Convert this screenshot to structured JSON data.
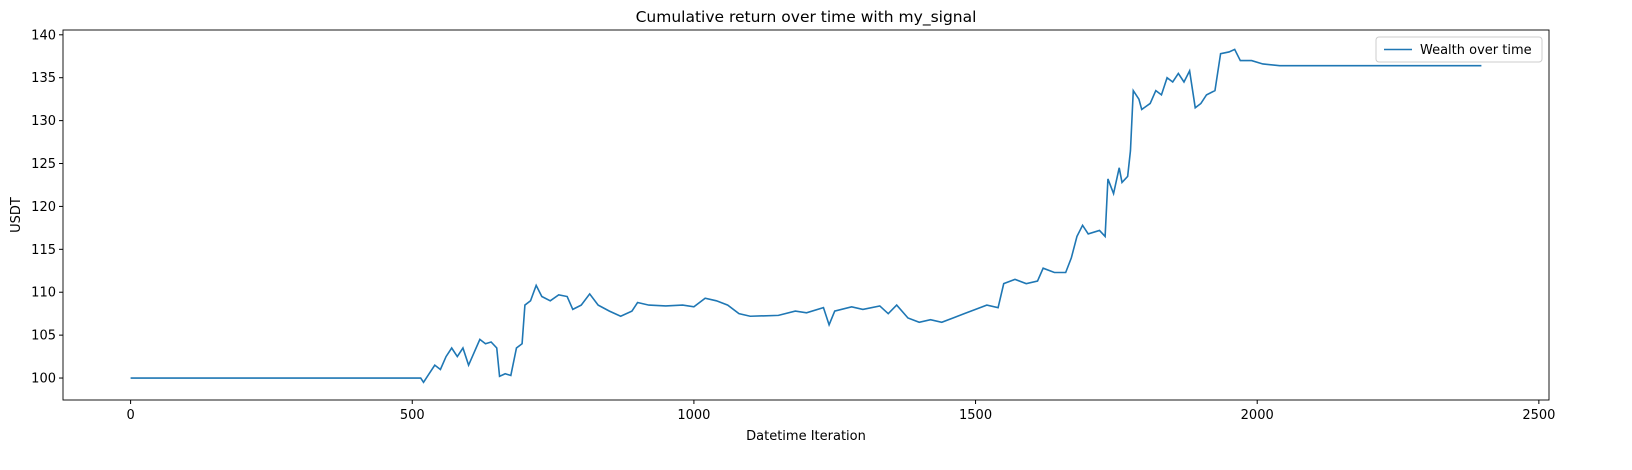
{
  "chart_data": {
    "type": "line",
    "title": "Cumulative return over time with my_signal",
    "xlabel": "Datetime Iteration",
    "ylabel": "USDT",
    "x": [
      0,
      515,
      520,
      530,
      540,
      550,
      560,
      570,
      580,
      590,
      600,
      610,
      620,
      630,
      640,
      650,
      655,
      665,
      675,
      685,
      695,
      700,
      710,
      720,
      730,
      745,
      760,
      775,
      785,
      800,
      815,
      830,
      850,
      870,
      890,
      900,
      920,
      950,
      980,
      1000,
      1020,
      1040,
      1060,
      1080,
      1100,
      1150,
      1180,
      1200,
      1230,
      1240,
      1250,
      1280,
      1300,
      1330,
      1345,
      1360,
      1380,
      1400,
      1420,
      1440,
      1460,
      1480,
      1500,
      1520,
      1540,
      1550,
      1570,
      1590,
      1610,
      1620,
      1640,
      1660,
      1670,
      1680,
      1690,
      1700,
      1720,
      1730,
      1735,
      1745,
      1755,
      1760,
      1770,
      1775,
      1780,
      1790,
      1795,
      1810,
      1820,
      1830,
      1840,
      1850,
      1860,
      1870,
      1880,
      1890,
      1900,
      1910,
      1925,
      1935,
      1950,
      1960,
      1970,
      1990,
      2010,
      2040,
      2398
    ],
    "series": [
      {
        "name": "Wealth over time",
        "color": "#1f77b4",
        "values": [
          100,
          100,
          99.5,
          100.5,
          101.5,
          101,
          102.5,
          103.5,
          102.5,
          103.5,
          101.5,
          103,
          104.5,
          104,
          104.2,
          103.5,
          100.2,
          100.5,
          100.3,
          103.5,
          104,
          108.5,
          109,
          110.8,
          109.5,
          109,
          109.7,
          109.5,
          108,
          108.5,
          109.8,
          108.5,
          107.8,
          107.2,
          107.8,
          108.8,
          108.5,
          108.4,
          108.5,
          108.3,
          109.3,
          109,
          108.5,
          107.5,
          107.2,
          107.3,
          107.8,
          107.6,
          108.2,
          106.2,
          107.8,
          108.3,
          108,
          108.4,
          107.5,
          108.5,
          107,
          106.5,
          106.8,
          106.5,
          107,
          107.5,
          108,
          108.5,
          108.2,
          111,
          111.5,
          111,
          111.3,
          112.8,
          112.3,
          112.3,
          114,
          116.5,
          117.8,
          116.8,
          117.2,
          116.5,
          123.2,
          121.5,
          124.5,
          122.8,
          123.5,
          126.5,
          133.5,
          132.5,
          131.3,
          132,
          133.5,
          133,
          135,
          134.5,
          135.5,
          134.5,
          135.8,
          131.5,
          132,
          133,
          133.5,
          137.8,
          138,
          138.3,
          137,
          137,
          136.6,
          136.4,
          136.4
        ]
      }
    ],
    "xlim": [
      -120,
      2518
    ],
    "ylim": [
      97.44,
      140.56
    ],
    "xticks": [
      0,
      500,
      1000,
      1500,
      2000,
      2500
    ],
    "yticks": [
      100,
      105,
      110,
      115,
      120,
      125,
      130,
      135,
      140
    ],
    "legend": "upper right"
  }
}
